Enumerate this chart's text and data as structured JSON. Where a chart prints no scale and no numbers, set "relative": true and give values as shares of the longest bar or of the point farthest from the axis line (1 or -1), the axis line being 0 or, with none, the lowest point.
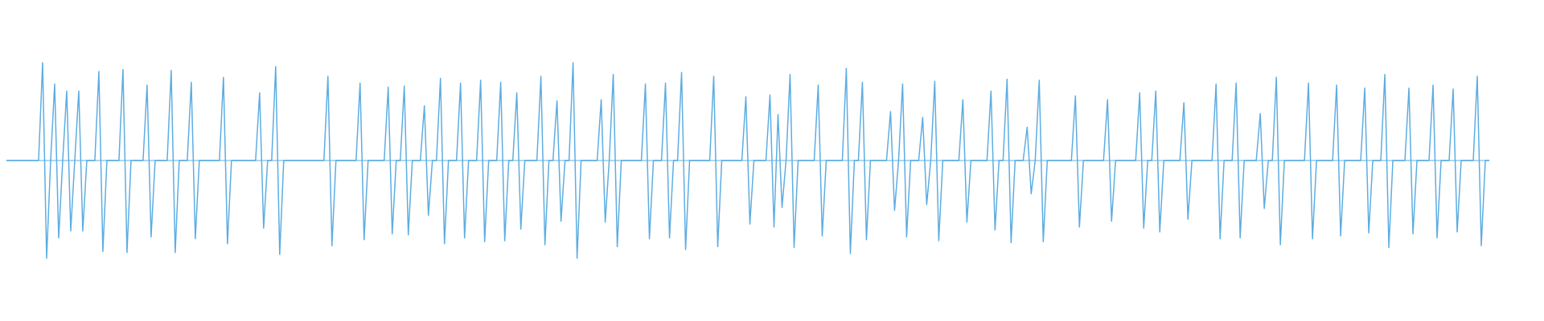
{
  "chart_data": {
    "type": "line",
    "relative": true,
    "color": "#5dade2",
    "ref_lines": [
      {
        "axis": "y",
        "value": 0,
        "color": "#5dade2"
      }
    ],
    "categories": [
      null,
      null,
      null,
      null,
      null,
      null,
      null,
      null,
      null,
      null,
      null,
      null,
      null,
      null,
      null,
      null,
      null,
      null,
      null,
      null,
      null,
      null,
      null,
      null,
      null,
      null,
      null,
      null,
      null,
      null,
      null,
      null,
      null,
      null,
      null,
      null,
      null,
      null,
      null,
      null,
      null,
      null,
      null,
      null,
      null,
      null,
      null,
      null,
      null,
      null,
      null,
      null,
      null,
      null,
      null,
      null,
      null,
      null,
      null,
      null,
      null,
      null,
      null,
      null,
      null,
      null,
      null,
      null,
      null,
      null,
      null,
      null,
      null,
      null,
      null,
      null,
      null,
      null,
      null,
      null,
      null,
      null,
      null,
      null,
      null,
      null,
      null,
      null,
      null,
      null,
      null,
      null,
      null,
      null,
      null,
      null,
      null,
      null,
      null,
      null,
      null,
      null,
      null,
      null,
      null,
      null,
      null,
      null,
      null,
      null,
      null,
      null,
      null,
      null,
      null,
      null,
      null,
      null,
      null,
      null,
      null,
      null,
      null,
      null,
      null,
      null,
      null,
      null,
      null,
      null,
      null,
      null,
      null,
      null,
      null,
      null,
      null,
      null,
      null,
      null,
      null,
      null,
      null,
      null,
      null,
      null,
      null,
      null,
      null,
      null,
      null,
      null,
      null,
      null,
      null,
      null,
      null,
      null,
      null,
      null,
      null,
      null,
      null,
      null,
      null,
      null,
      null,
      null,
      null,
      null,
      null,
      null,
      null,
      null,
      null,
      null,
      null,
      null,
      null,
      null,
      null,
      null,
      null,
      null,
      null,
      null,
      null,
      null,
      null,
      null,
      null,
      null,
      null,
      null,
      null,
      null,
      null,
      null,
      null,
      null,
      null,
      null,
      null,
      null,
      null,
      null,
      null,
      null,
      null,
      null,
      null,
      null,
      null,
      null,
      null,
      null,
      null,
      null,
      null,
      null,
      null,
      null,
      null,
      null,
      null,
      null,
      null,
      null,
      null,
      null,
      null,
      null,
      null,
      null,
      null,
      null,
      null,
      null,
      null,
      null,
      null,
      null,
      null,
      null,
      null,
      null,
      null,
      null,
      null,
      null,
      null,
      null,
      null,
      null,
      null,
      null,
      null,
      null,
      null,
      null,
      null,
      null,
      null,
      null,
      null,
      null,
      null,
      null,
      null,
      null,
      null,
      null,
      null,
      null,
      null,
      null,
      null,
      null,
      null,
      null,
      null,
      null,
      null,
      null,
      null,
      null,
      null,
      null,
      null,
      null,
      null,
      null,
      null,
      null,
      null,
      null,
      null,
      null,
      null,
      null,
      null,
      null,
      null,
      null,
      null,
      null,
      null,
      null,
      null,
      null,
      null,
      null,
      null,
      null,
      null,
      null,
      null,
      null,
      null,
      null,
      null,
      null,
      null,
      null,
      null,
      null,
      null,
      null,
      null,
      null,
      null,
      null,
      null,
      null,
      null,
      null,
      null,
      null,
      null,
      null,
      null,
      null,
      null,
      null,
      null,
      null,
      null,
      null,
      null,
      null,
      null,
      null,
      null,
      null,
      null,
      null,
      null,
      null,
      null,
      null,
      null,
      null,
      null,
      null,
      null,
      null,
      null,
      null,
      null,
      null
    ],
    "values": [
      0,
      0,
      0,
      0,
      0,
      0,
      0,
      0,
      0,
      1,
      -1,
      0,
      0.78,
      -0.79,
      0,
      0.71,
      -0.72,
      0,
      0.71,
      -0.72,
      0,
      0,
      0,
      0.91,
      -0.93,
      0,
      0,
      0,
      0,
      0.93,
      -0.94,
      0,
      0,
      0,
      0,
      0.77,
      -0.78,
      0,
      0,
      0,
      0,
      0.92,
      -0.94,
      0,
      0,
      0,
      0.8,
      -0.8,
      0,
      0,
      0,
      0,
      0,
      0,
      0.85,
      -0.85,
      0,
      0,
      0,
      0,
      0,
      0,
      0,
      0.69,
      -0.69,
      0,
      0,
      0.96,
      -0.96,
      0,
      0,
      0,
      0,
      0,
      0,
      0,
      0,
      0,
      0,
      0,
      0.86,
      -0.87,
      0,
      0,
      0,
      0,
      0,
      0,
      0.79,
      -0.81,
      0,
      0,
      0,
      0,
      0,
      0.75,
      -0.75,
      0,
      0,
      0.76,
      -0.76,
      0,
      0,
      0,
      0.56,
      -0.56,
      0,
      0,
      0.84,
      -0.85,
      0,
      0,
      0,
      0.79,
      -0.79,
      0,
      0,
      0,
      0.82,
      -0.83,
      0,
      0,
      0,
      0.8,
      -0.82,
      0,
      0,
      0.69,
      -0.7,
      0,
      0,
      0,
      0,
      0.86,
      -0.86,
      0,
      0,
      0.61,
      -0.62,
      0,
      0,
      1,
      -1,
      0,
      0,
      0,
      0,
      0,
      0.62,
      -0.63,
      0,
      0.88,
      -0.88,
      0,
      0,
      0,
      0,
      0,
      0,
      0.78,
      -0.8,
      0,
      0,
      0,
      0.79,
      -0.79,
      0,
      0,
      0.9,
      -0.91,
      0,
      0,
      0,
      0,
      0,
      0,
      0.86,
      -0.88,
      0,
      0,
      0,
      0,
      0,
      0,
      0.65,
      -0.65,
      0,
      0,
      0,
      0,
      0.67,
      -0.68,
      0.47,
      -0.48,
      0,
      0.88,
      -0.89,
      0,
      0,
      0,
      0,
      0,
      0.77,
      -0.77,
      0,
      0,
      0,
      0,
      0,
      0.94,
      -0.95,
      0,
      0,
      0.8,
      -0.81,
      0,
      0,
      0,
      0,
      0,
      0.5,
      -0.51,
      0,
      0.78,
      -0.78,
      0,
      0,
      0,
      0.44,
      -0.45,
      0,
      0.81,
      -0.82,
      0,
      0,
      0,
      0,
      0,
      0.62,
      -0.63,
      0,
      0,
      0,
      0,
      0,
      0.71,
      -0.71,
      0,
      0,
      0.83,
      -0.84,
      0,
      0,
      0,
      0.34,
      -0.34,
      0,
      0.82,
      -0.83,
      0,
      0,
      0,
      0,
      0,
      0,
      0,
      0.66,
      -0.68,
      0,
      0,
      0,
      0,
      0,
      0,
      0.62,
      -0.62,
      0,
      0,
      0,
      0,
      0,
      0,
      0.69,
      -0.69,
      0,
      0,
      0.71,
      -0.73,
      0,
      0,
      0,
      0,
      0,
      0.59,
      -0.6,
      0,
      0,
      0,
      0,
      0,
      0,
      0.78,
      -0.8,
      0,
      0,
      0,
      0.79,
      -0.79,
      0,
      0,
      0,
      0,
      0.48,
      -0.49,
      0,
      0,
      0.85,
      -0.86,
      0,
      0,
      0,
      0,
      0,
      0,
      0.79,
      -0.8,
      0,
      0,
      0,
      0,
      0,
      0.77,
      -0.77,
      0,
      0,
      0,
      0,
      0,
      0.74,
      -0.74,
      0,
      0,
      0,
      0.88,
      -0.89,
      0,
      0,
      0,
      0,
      0.74,
      -0.75,
      0,
      0,
      0,
      0,
      0.77,
      -0.79,
      0,
      0,
      0,
      0.73,
      -0.73,
      0,
      0,
      0,
      0,
      0.86,
      -0.87,
      0,
      0
    ]
  }
}
